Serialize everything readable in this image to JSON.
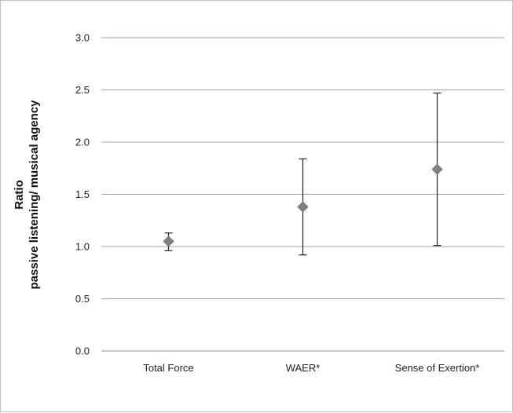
{
  "chart_data": {
    "type": "scatter",
    "title": "",
    "xlabel": "",
    "ylabel_lines": [
      "Ratio",
      "passive listening/ musical agency"
    ],
    "categories": [
      "Total Force",
      "WAER*",
      "Sense of Exertion*"
    ],
    "values": [
      1.05,
      1.38,
      1.74
    ],
    "error_low": [
      0.96,
      0.92,
      1.01
    ],
    "error_high": [
      1.13,
      1.84,
      2.47
    ],
    "ylim": [
      0,
      3
    ],
    "yticks": [
      "0.0",
      "0.5",
      "1.0",
      "1.5",
      "2.0",
      "2.5",
      "3.0"
    ],
    "grid": true,
    "legend": "none",
    "marker": "diamond",
    "marker_color": "#808080",
    "error_bar_color": "#222222",
    "grid_color": "#a6a6a6"
  }
}
